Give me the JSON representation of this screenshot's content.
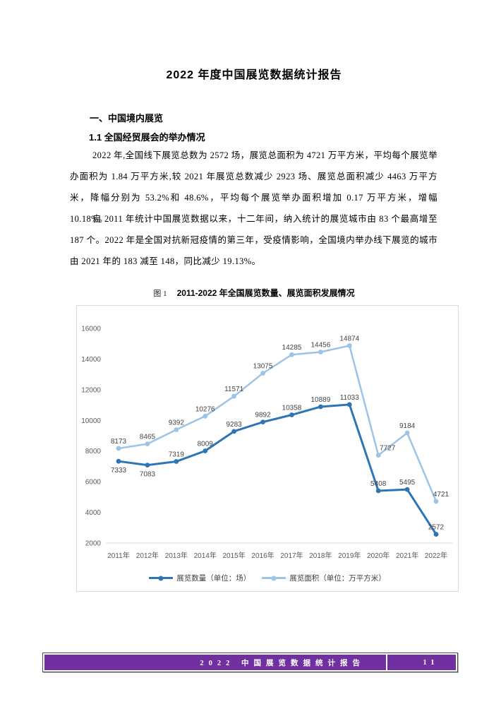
{
  "doc": {
    "title": "2022 年度中国展览数据统计报告",
    "heading1": "一、中国境内展览",
    "heading2": "1.1 全国经贸展会的举办情况",
    "paragraph1": "2022 年,全国线下展览总数为 2572 场，展览总面积为 4721 万平方米，平均每个展览举办面积为 1.84 万平方米,较 2021 年展览总数减少 2923 场、展览总面积减少 4463 万平方米，降幅分别为 53.2%和 48.6%，平均每个展览举办面积增加 0.17 万平方米，增幅 10.18%。",
    "paragraph2": "自 2011 年统计中国展览数据以来，十二年间，纳入统计的展览城市由 83 个最高增至 187 个。2022 年是全国对抗新冠疫情的第三年，受疫情影响，全国境内举办线下展览的城市由 2021 年的 183 减至 148，同比减少 19.13%。"
  },
  "figure": {
    "caption_prefix": "图 1",
    "caption_title": "2011-2022 年全国展览数量、展览面积发展情况"
  },
  "chart_data": {
    "type": "line",
    "title": "2011-2022 年全国展览数量、展览面积发展情况",
    "categories": [
      "2011年",
      "2012年",
      "2013年",
      "2014年",
      "2015年",
      "2016年",
      "2017年",
      "2018年",
      "2019年",
      "2020年",
      "2021年",
      "2022年"
    ],
    "series": [
      {
        "name": "展览数量（单位：场）",
        "color": "#2E75B6",
        "line_width": 3,
        "values": [
          7333,
          7083,
          7319,
          8009,
          9283,
          9892,
          10358,
          10889,
          11033,
          5408,
          5495,
          2572
        ],
        "label_below_indices": [
          0,
          1
        ],
        "label_dx": {}
      },
      {
        "name": "展览面积（单位：万平方米）",
        "color": "#9DC3E6",
        "line_width": 2.5,
        "values": [
          8173,
          8465,
          9392,
          10276,
          11571,
          13075,
          14285,
          14456,
          14874,
          7727,
          9184,
          4721
        ],
        "label_below_indices": [],
        "label_dx": {
          "9": 13,
          "11": 7
        }
      }
    ],
    "ylim": [
      2000,
      16000
    ],
    "ytick_step": 2000,
    "grid": false,
    "legend_position": "bottom",
    "axis_color": "#d9d9d9",
    "tick_label_color": "#595959",
    "data_label_color": "#444444"
  },
  "footer": {
    "text": "2022 中国展览数据统计报告",
    "page_number": "11",
    "bar_color": "#7030A0"
  }
}
